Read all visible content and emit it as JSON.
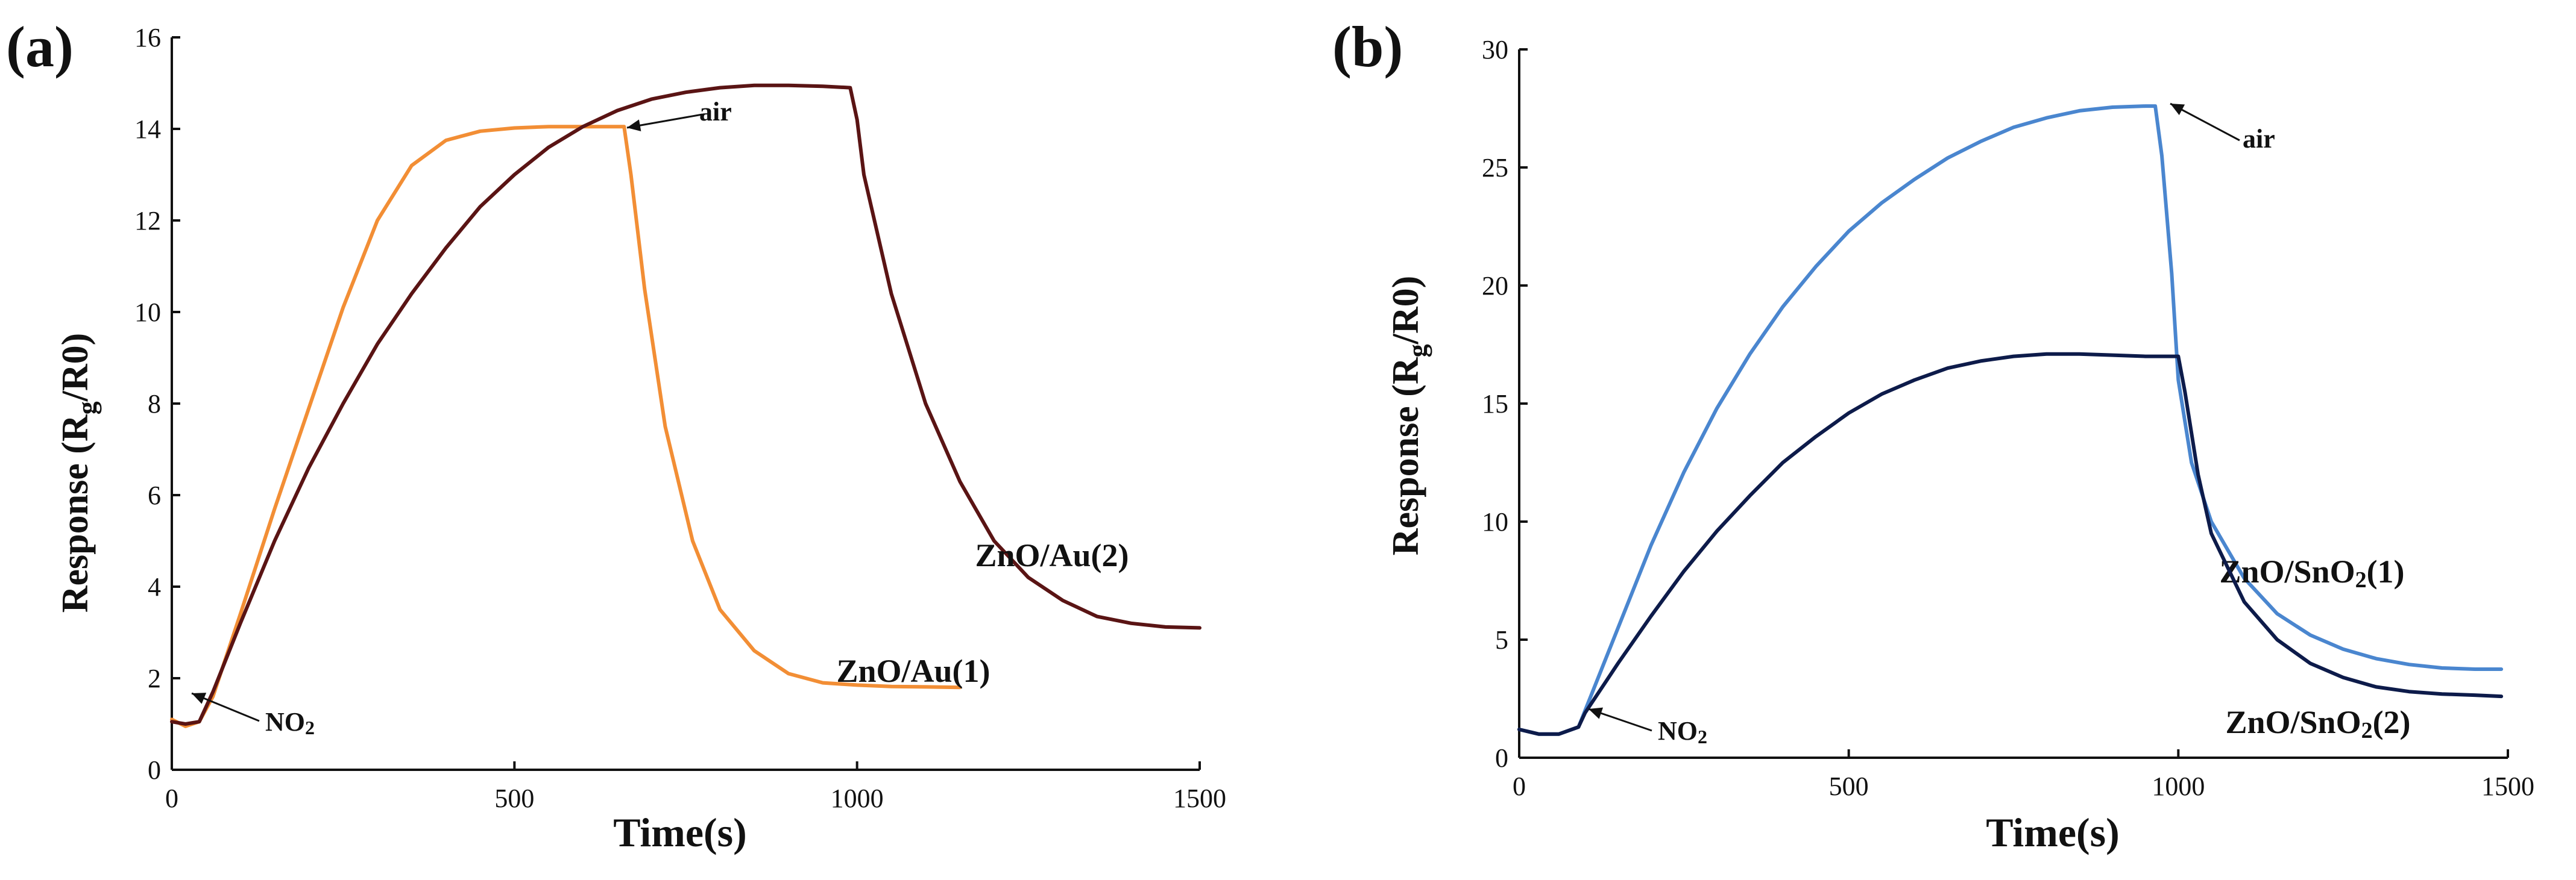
{
  "chart_data": [
    {
      "type": "line",
      "panel_label": "(a)",
      "xlabel": "Time(s)",
      "ylabel": "Response (Rg/R0)",
      "ylabel_parts": {
        "pre": "Response (R",
        "sub": "g",
        "post": "/R0)"
      },
      "xlim": [
        0,
        1500
      ],
      "ylim": [
        0,
        16
      ],
      "xticks": [
        0,
        500,
        1000,
        1500
      ],
      "yticks": [
        0,
        2,
        4,
        6,
        8,
        10,
        12,
        14,
        16
      ],
      "annotations": [
        {
          "text": "air",
          "x": 660,
          "y": 14.0
        },
        {
          "text": "NO2",
          "text_parts": {
            "pre": "NO",
            "sub": "2"
          },
          "x": 40,
          "y": 1.0
        }
      ],
      "series": [
        {
          "name": "ZnO/Au(1)",
          "color": "#f28e35",
          "x": [
            0,
            20,
            40,
            60,
            100,
            150,
            200,
            250,
            300,
            350,
            400,
            450,
            500,
            550,
            600,
            640,
            660,
            670,
            690,
            720,
            760,
            800,
            850,
            900,
            950,
            1000,
            1050,
            1100,
            1150
          ],
          "y": [
            1.1,
            0.95,
            1.05,
            1.6,
            3.4,
            5.7,
            7.9,
            10.1,
            12.0,
            13.2,
            13.75,
            13.95,
            14.02,
            14.05,
            14.05,
            14.05,
            14.05,
            13.0,
            10.5,
            7.5,
            5.0,
            3.5,
            2.6,
            2.1,
            1.9,
            1.85,
            1.82,
            1.81,
            1.8
          ]
        },
        {
          "name": "ZnO/Au(2)",
          "color": "#5a1414",
          "x": [
            0,
            20,
            40,
            60,
            100,
            150,
            200,
            250,
            300,
            350,
            400,
            450,
            500,
            550,
            600,
            650,
            700,
            750,
            800,
            850,
            900,
            950,
            990,
            1000,
            1010,
            1050,
            1100,
            1150,
            1200,
            1250,
            1300,
            1350,
            1400,
            1450,
            1500
          ],
          "y": [
            1.05,
            1.0,
            1.05,
            1.7,
            3.2,
            5.0,
            6.6,
            8.0,
            9.3,
            10.4,
            11.4,
            12.3,
            13.0,
            13.6,
            14.05,
            14.4,
            14.65,
            14.8,
            14.9,
            14.95,
            14.95,
            14.93,
            14.9,
            14.2,
            13.0,
            10.4,
            8.0,
            6.3,
            5.0,
            4.2,
            3.7,
            3.35,
            3.2,
            3.12,
            3.1
          ]
        }
      ]
    },
    {
      "type": "line",
      "panel_label": "(b)",
      "xlabel": "Time(s)",
      "ylabel": "Response (Rg/R0)",
      "ylabel_parts": {
        "pre": "Response (R",
        "sub": "g",
        "post": "/R0)"
      },
      "xlim": [
        0,
        1500
      ],
      "ylim": [
        0,
        30
      ],
      "xticks": [
        0,
        500,
        1000,
        1500
      ],
      "yticks": [
        0,
        5,
        10,
        15,
        20,
        25,
        30
      ],
      "annotations": [
        {
          "text": "air",
          "x": 965,
          "y": 27.6
        },
        {
          "text": "NO2",
          "text_parts": {
            "pre": "NO",
            "sub": "2"
          },
          "x": 90,
          "y": 1.4
        }
      ],
      "series": [
        {
          "name": "ZnO/SnO2(1)",
          "name_parts": {
            "pre": "ZnO/SnO",
            "sub": "2",
            "post": "(1)"
          },
          "color": "#4a86cf",
          "x": [
            0,
            30,
            60,
            90,
            100,
            150,
            200,
            250,
            300,
            350,
            400,
            450,
            500,
            550,
            600,
            650,
            700,
            750,
            800,
            850,
            900,
            950,
            965,
            975,
            990,
            1000,
            1020,
            1050,
            1100,
            1150,
            1200,
            1250,
            1300,
            1350,
            1400,
            1450,
            1490
          ],
          "y": [
            1.2,
            1.0,
            1.0,
            1.3,
            2.0,
            5.5,
            9.0,
            12.1,
            14.8,
            17.1,
            19.1,
            20.8,
            22.3,
            23.5,
            24.5,
            25.4,
            26.1,
            26.7,
            27.1,
            27.4,
            27.55,
            27.6,
            27.6,
            25.5,
            20.5,
            16.0,
            12.5,
            10.0,
            7.6,
            6.1,
            5.2,
            4.6,
            4.2,
            3.95,
            3.8,
            3.75,
            3.75
          ]
        },
        {
          "name": "ZnO/SnO2(2)",
          "name_parts": {
            "pre": "ZnO/SnO",
            "sub": "2",
            "post": "(2)"
          },
          "color": "#0d1b4a",
          "x": [
            0,
            30,
            60,
            90,
            100,
            150,
            200,
            250,
            300,
            350,
            400,
            450,
            500,
            550,
            600,
            650,
            700,
            750,
            800,
            850,
            900,
            950,
            1000,
            1010,
            1030,
            1050,
            1100,
            1150,
            1200,
            1250,
            1300,
            1350,
            1400,
            1450,
            1490
          ],
          "y": [
            1.2,
            1.0,
            1.0,
            1.3,
            1.9,
            4.0,
            6.0,
            7.9,
            9.6,
            11.1,
            12.5,
            13.6,
            14.6,
            15.4,
            16.0,
            16.5,
            16.8,
            17.0,
            17.1,
            17.1,
            17.05,
            17.0,
            17.0,
            15.5,
            12.0,
            9.5,
            6.6,
            5.0,
            4.0,
            3.4,
            3.0,
            2.8,
            2.7,
            2.65,
            2.6
          ]
        }
      ]
    }
  ]
}
